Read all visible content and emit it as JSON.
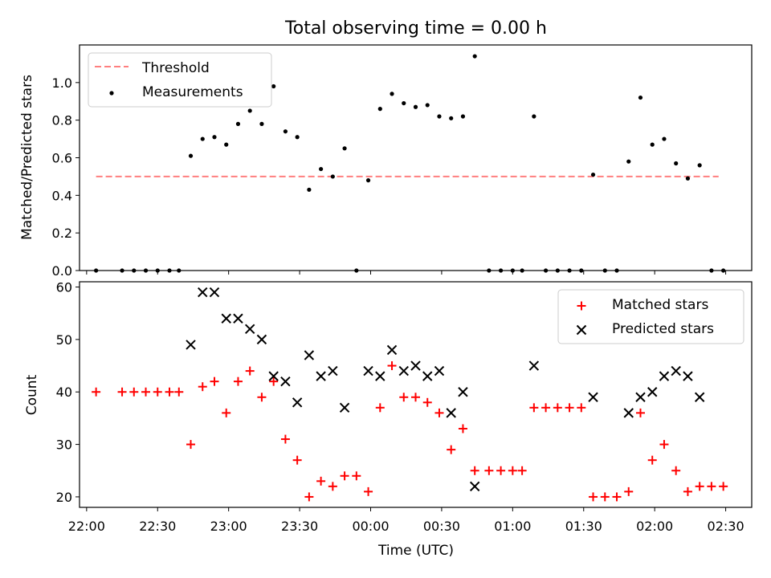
{
  "chart_data": [
    {
      "type": "scatter",
      "title": "Total observing time = 0.00 h",
      "xlabel": "",
      "ylabel": "Matched/Predicted stars",
      "ylim": [
        0,
        1.2
      ],
      "yticks": [
        "0.0",
        "0.2",
        "0.4",
        "0.6",
        "0.8",
        "1.0"
      ],
      "legend": {
        "position": "top-left",
        "entries": [
          {
            "name": "Threshold",
            "color": "#ff7f7f",
            "style": "dashed-line"
          },
          {
            "name": "Measurements",
            "color": "#000000",
            "style": "dot"
          }
        ]
      },
      "threshold": {
        "value": 0.5,
        "x_start": "22:04",
        "x_end": "02:27"
      },
      "series": [
        {
          "name": "Measurements",
          "color": "#000000",
          "x": [
            "22:04",
            "22:15",
            "22:20",
            "22:25",
            "22:30",
            "22:35",
            "22:39",
            "22:44",
            "22:49",
            "22:54",
            "22:59",
            "23:04",
            "23:09",
            "23:14",
            "23:19",
            "23:24",
            "23:29",
            "23:34",
            "23:39",
            "23:44",
            "23:49",
            "23:54",
            "23:59",
            "00:04",
            "00:09",
            "00:14",
            "00:19",
            "00:24",
            "00:29",
            "00:34",
            "00:39",
            "00:44",
            "00:50",
            "00:55",
            "01:00",
            "01:04",
            "01:09",
            "01:14",
            "01:19",
            "01:24",
            "01:29",
            "01:34",
            "01:39",
            "01:44",
            "01:49",
            "01:54",
            "01:59",
            "02:04",
            "02:09",
            "02:14",
            "02:19",
            "02:24",
            "02:29"
          ],
          "y": [
            0.0,
            0.0,
            0.0,
            0.0,
            0.0,
            0.0,
            0.0,
            0.61,
            0.7,
            0.71,
            0.67,
            0.78,
            0.85,
            0.78,
            0.98,
            0.74,
            0.71,
            0.43,
            0.54,
            0.5,
            0.65,
            0.0,
            0.48,
            0.86,
            0.94,
            0.89,
            0.87,
            0.88,
            0.82,
            0.81,
            0.82,
            1.14,
            0.0,
            0.0,
            0.0,
            0.0,
            0.82,
            0.0,
            0.0,
            0.0,
            0.0,
            0.51,
            0.0,
            0.0,
            0.58,
            0.92,
            0.67,
            0.7,
            0.57,
            0.49,
            0.56,
            0.0,
            0.0
          ]
        }
      ]
    },
    {
      "type": "scatter",
      "title": "",
      "xlabel": "Time (UTC)",
      "ylabel": "Count",
      "ylim": [
        18,
        61
      ],
      "yticks": [
        "20",
        "30",
        "40",
        "50",
        "60"
      ],
      "xticks": [
        "22:00",
        "22:30",
        "23:00",
        "23:30",
        "00:00",
        "00:30",
        "01:00",
        "01:30",
        "02:00",
        "02:30"
      ],
      "xlim": [
        "21:57",
        "02:41"
      ],
      "legend": {
        "position": "top-right",
        "entries": [
          {
            "name": "Matched stars",
            "color": "#ff0000",
            "style": "plus"
          },
          {
            "name": "Predicted stars",
            "color": "#000000",
            "style": "x"
          }
        ]
      },
      "series": [
        {
          "name": "Matched stars",
          "color": "#ff0000",
          "x": [
            "22:04",
            "22:15",
            "22:20",
            "22:25",
            "22:30",
            "22:35",
            "22:39",
            "22:44",
            "22:49",
            "22:54",
            "22:59",
            "23:04",
            "23:09",
            "23:14",
            "23:19",
            "23:24",
            "23:29",
            "23:34",
            "23:39",
            "23:44",
            "23:49",
            "23:54",
            "23:59",
            "00:04",
            "00:09",
            "00:14",
            "00:19",
            "00:24",
            "00:29",
            "00:34",
            "00:39",
            "00:44",
            "00:50",
            "00:55",
            "01:00",
            "01:04",
            "01:09",
            "01:14",
            "01:19",
            "01:24",
            "01:29",
            "01:34",
            "01:39",
            "01:44",
            "01:49",
            "01:54",
            "01:59",
            "02:04",
            "02:09",
            "02:14",
            "02:19",
            "02:24",
            "02:29"
          ],
          "y": [
            40,
            40,
            40,
            40,
            40,
            40,
            40,
            30,
            41,
            42,
            36,
            42,
            44,
            39,
            42,
            31,
            27,
            20,
            23,
            22,
            24,
            24,
            21,
            37,
            45,
            39,
            39,
            38,
            36,
            29,
            33,
            25,
            25,
            25,
            25,
            25,
            37,
            37,
            37,
            37,
            37,
            20,
            20,
            20,
            21,
            36,
            27,
            30,
            25,
            21,
            22,
            22,
            22
          ]
        },
        {
          "name": "Predicted stars",
          "color": "#000000",
          "x": [
            "22:44",
            "22:49",
            "22:54",
            "22:59",
            "23:04",
            "23:09",
            "23:14",
            "23:19",
            "23:24",
            "23:29",
            "23:34",
            "23:39",
            "23:44",
            "23:49",
            "23:59",
            "00:04",
            "00:09",
            "00:14",
            "00:19",
            "00:24",
            "00:29",
            "00:34",
            "00:39",
            "00:44",
            "01:09",
            "01:34",
            "01:49",
            "01:54",
            "01:59",
            "02:04",
            "02:09",
            "02:14",
            "02:19"
          ],
          "y": [
            49,
            59,
            59,
            54,
            54,
            52,
            50,
            43,
            42,
            38,
            47,
            43,
            44,
            37,
            44,
            43,
            48,
            44,
            45,
            43,
            44,
            36,
            40,
            22,
            45,
            39,
            36,
            39,
            40,
            43,
            44,
            43,
            39
          ]
        }
      ]
    }
  ]
}
